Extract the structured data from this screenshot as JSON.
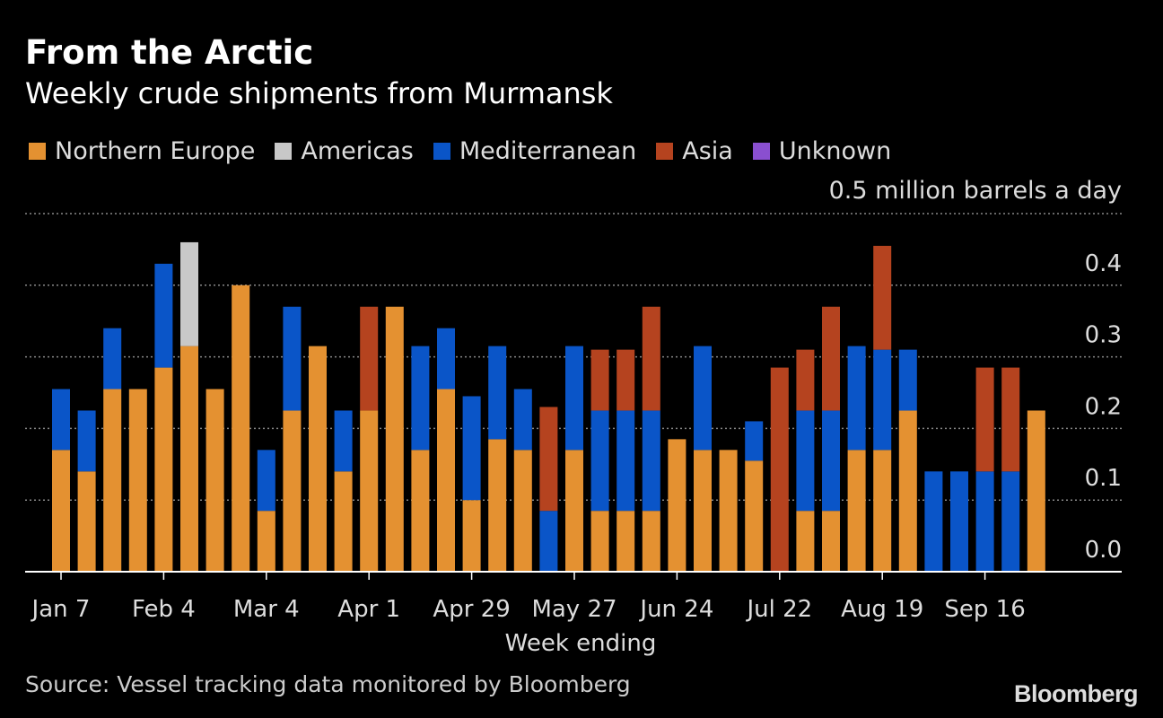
{
  "chart_data": {
    "type": "bar",
    "stacked": true,
    "title": "From the Arctic",
    "subtitle": "Weekly crude shipments from Murmansk",
    "unit_label": "0.5 million barrels a day",
    "xlabel": "Week ending",
    "ylabel": "",
    "ylim": [
      0,
      0.5
    ],
    "yticks": [
      "0.0",
      "0.1",
      "0.2",
      "0.3",
      "0.4"
    ],
    "ytick_values": [
      0,
      0.1,
      0.2,
      0.3,
      0.4
    ],
    "xtick_labels": [
      "Jan 7",
      "Feb 4",
      "Mar 4",
      "Apr 1",
      "Apr 29",
      "May 27",
      "Jun 24",
      "Jul 22",
      "Aug 19",
      "Sep 16"
    ],
    "xtick_indices": [
      0,
      4,
      8,
      12,
      16,
      20,
      24,
      28,
      32,
      36
    ],
    "grid": true,
    "legend_position": "top-left",
    "n_weeks": 39,
    "series": [
      {
        "name": "Northern Europe",
        "color": "#e49131",
        "values": [
          0.17,
          0.14,
          0.255,
          0.255,
          0.285,
          0.315,
          0.255,
          0.4,
          0.085,
          0.225,
          0.315,
          0.14,
          0.225,
          0.37,
          0.17,
          0.255,
          0.1,
          0.185,
          0.17,
          0,
          0.17,
          0.085,
          0.085,
          0.085,
          0.185,
          0.17,
          0.17,
          0.155,
          0,
          0.085,
          0.085,
          0.17,
          0.17,
          0.225,
          0,
          0,
          0,
          0,
          0.225
        ]
      },
      {
        "name": "Americas",
        "color": "#c8c8c8",
        "values": [
          0,
          0,
          0,
          0,
          0,
          0.145,
          0,
          0,
          0,
          0,
          0,
          0,
          0,
          0,
          0,
          0,
          0,
          0,
          0,
          0,
          0,
          0,
          0,
          0,
          0,
          0,
          0,
          0,
          0,
          0,
          0,
          0,
          0,
          0,
          0,
          0,
          0,
          0,
          0
        ]
      },
      {
        "name": "Mediterranean",
        "color": "#0a55c8",
        "values": [
          0.085,
          0.085,
          0.085,
          0,
          0.145,
          0,
          0,
          0,
          0.085,
          0.145,
          0,
          0.085,
          0,
          0,
          0.145,
          0.085,
          0.145,
          0.13,
          0.085,
          0.085,
          0.145,
          0.14,
          0.14,
          0.14,
          0,
          0.145,
          0,
          0.055,
          0,
          0.14,
          0.14,
          0.145,
          0.14,
          0.085,
          0.14,
          0.14,
          0.14,
          0.14,
          0
        ]
      },
      {
        "name": "Asia",
        "color": "#b5431f",
        "values": [
          0,
          0,
          0,
          0,
          0,
          0,
          0,
          0,
          0,
          0,
          0,
          0,
          0.145,
          0,
          0,
          0,
          0,
          0,
          0,
          0.145,
          0,
          0.085,
          0.085,
          0.145,
          0,
          0,
          0,
          0,
          0.285,
          0.085,
          0.145,
          0,
          0.145,
          0,
          0,
          0,
          0.145,
          0.145,
          0
        ]
      },
      {
        "name": "Unknown",
        "color": "#8a4fd0",
        "values": [
          0,
          0,
          0,
          0,
          0,
          0,
          0,
          0,
          0,
          0,
          0,
          0,
          0,
          0,
          0,
          0,
          0,
          0,
          0,
          0,
          0,
          0,
          0,
          0,
          0,
          0,
          0,
          0,
          0,
          0,
          0,
          0,
          0,
          0,
          0,
          0,
          0,
          0,
          0
        ]
      }
    ]
  },
  "footer": {
    "source": "Source: Vessel tracking data monitored by Bloomberg",
    "brand": "Bloomberg"
  }
}
